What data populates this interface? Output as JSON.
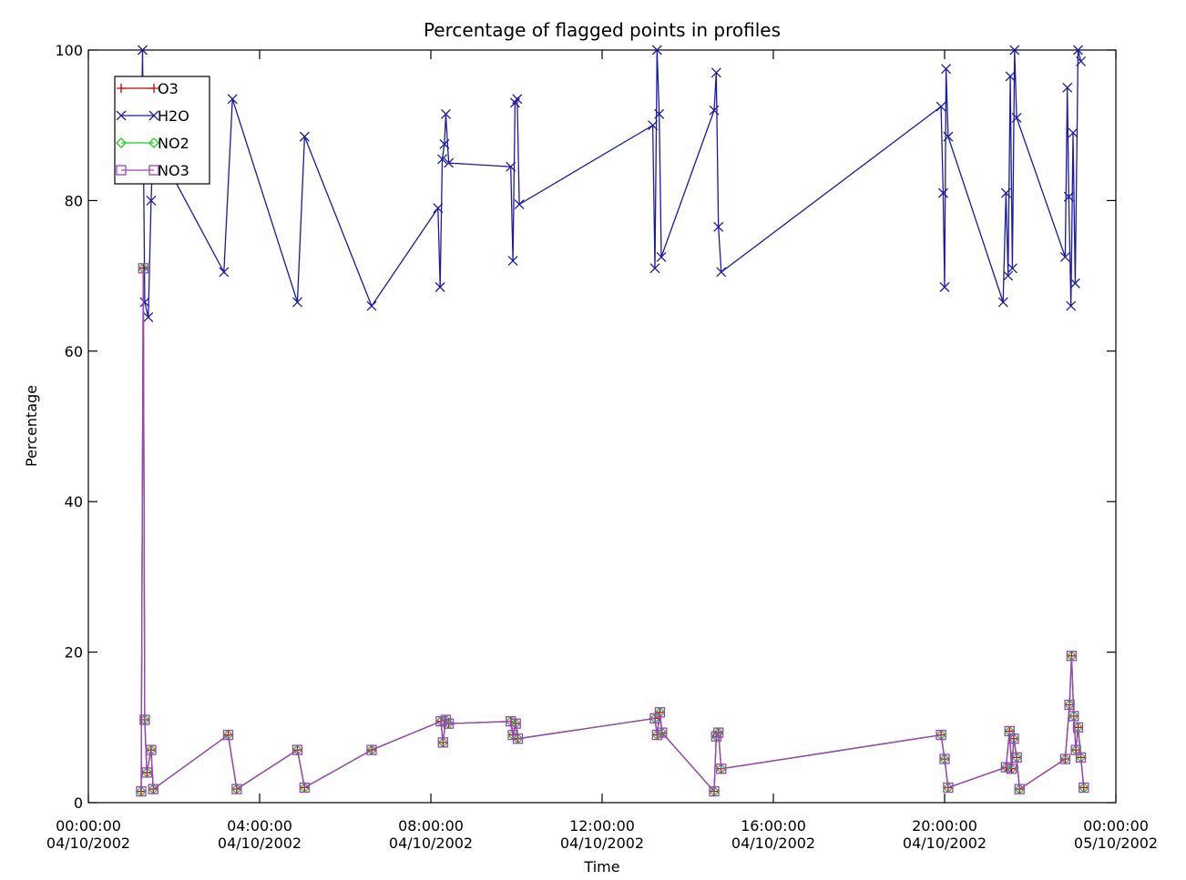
{
  "chart_data": {
    "type": "line",
    "title": "Percentage of flagged points in profiles",
    "xlabel": "Time",
    "ylabel": "Percentage",
    "xlim": [
      "2002-10-04T00:00",
      "2002-10-05T00:00"
    ],
    "ylim": [
      0,
      100
    ],
    "x_ticks": [
      {
        "value": "2002-10-04T00:00",
        "line1": "00:00:00",
        "line2": "04/10/2002"
      },
      {
        "value": "2002-10-04T04:00",
        "line1": "04:00:00",
        "line2": "04/10/2002"
      },
      {
        "value": "2002-10-04T08:00",
        "line1": "08:00:00",
        "line2": "04/10/2002"
      },
      {
        "value": "2002-10-04T12:00",
        "line1": "12:00:00",
        "line2": "04/10/2002"
      },
      {
        "value": "2002-10-04T16:00",
        "line1": "16:00:00",
        "line2": "04/10/2002"
      },
      {
        "value": "2002-10-04T20:00",
        "line1": "20:00:00",
        "line2": "04/10/2002"
      },
      {
        "value": "2002-10-05T00:00",
        "line1": "00:00:00",
        "line2": "05/10/2002"
      }
    ],
    "y_ticks": [
      0,
      20,
      40,
      60,
      80,
      100
    ],
    "grid": false,
    "legend_position": "top-left",
    "series": [
      {
        "name": "O3",
        "color": "#cc0000",
        "marker": "plus",
        "points": [
          [
            "2002-10-04T01:14",
            1.5
          ],
          [
            "2002-10-04T01:17",
            71
          ],
          [
            "2002-10-04T01:19",
            11
          ],
          [
            "2002-10-04T01:22",
            4
          ],
          [
            "2002-10-04T01:28",
            7
          ],
          [
            "2002-10-04T01:31",
            1.8
          ],
          [
            "2002-10-04T03:16",
            9
          ],
          [
            "2002-10-04T03:28",
            1.8
          ],
          [
            "2002-10-04T04:53",
            7
          ],
          [
            "2002-10-04T05:03",
            2
          ],
          [
            "2002-10-04T06:37",
            7
          ],
          [
            "2002-10-04T08:14",
            10.8
          ],
          [
            "2002-10-04T08:17",
            8
          ],
          [
            "2002-10-04T08:21",
            11
          ],
          [
            "2002-10-04T08:25",
            10.5
          ],
          [
            "2002-10-04T09:52",
            10.8
          ],
          [
            "2002-10-04T09:55",
            9
          ],
          [
            "2002-10-04T09:59",
            10.5
          ],
          [
            "2002-10-04T10:02",
            8.5
          ],
          [
            "2002-10-04T13:14",
            11.2
          ],
          [
            "2002-10-04T13:17",
            9
          ],
          [
            "2002-10-04T13:21",
            12
          ],
          [
            "2002-10-04T13:24",
            9.3
          ],
          [
            "2002-10-04T14:37",
            1.5
          ],
          [
            "2002-10-04T14:40",
            8.8
          ],
          [
            "2002-10-04T14:43",
            9.3
          ],
          [
            "2002-10-04T14:47",
            4.5
          ],
          [
            "2002-10-04T19:55",
            9
          ],
          [
            "2002-10-04T20:00",
            5.8
          ],
          [
            "2002-10-04T20:05",
            2
          ],
          [
            "2002-10-04T21:26",
            4.7
          ],
          [
            "2002-10-04T21:31",
            9.5
          ],
          [
            "2002-10-04T21:34",
            4.5
          ],
          [
            "2002-10-04T21:37",
            8.5
          ],
          [
            "2002-10-04T21:41",
            6
          ],
          [
            "2002-10-04T21:45",
            1.8
          ],
          [
            "2002-10-04T22:49",
            5.8
          ],
          [
            "2002-10-04T22:55",
            13
          ],
          [
            "2002-10-04T22:58",
            19.5
          ],
          [
            "2002-10-04T23:01",
            11.5
          ],
          [
            "2002-10-04T23:04",
            7
          ],
          [
            "2002-10-04T23:07",
            10
          ],
          [
            "2002-10-04T23:11",
            6
          ],
          [
            "2002-10-04T23:15",
            2
          ]
        ]
      },
      {
        "name": "H2O",
        "color": "#1a1aa6",
        "marker": "x",
        "points": [
          [
            "2002-10-04T01:14",
            87
          ],
          [
            "2002-10-04T01:16",
            100
          ],
          [
            "2002-10-04T01:19",
            66.5
          ],
          [
            "2002-10-04T01:24",
            64.5
          ],
          [
            "2002-10-04T01:28",
            80
          ],
          [
            "2002-10-04T01:31",
            88
          ],
          [
            "2002-10-04T03:10",
            70.5
          ],
          [
            "2002-10-04T03:22",
            93.5
          ],
          [
            "2002-10-04T04:53",
            66.5
          ],
          [
            "2002-10-04T05:03",
            88.5
          ],
          [
            "2002-10-04T06:37",
            66
          ],
          [
            "2002-10-04T08:10",
            79
          ],
          [
            "2002-10-04T08:13",
            68.5
          ],
          [
            "2002-10-04T08:16",
            85.5
          ],
          [
            "2002-10-04T08:19",
            87.5
          ],
          [
            "2002-10-04T08:21",
            91.5
          ],
          [
            "2002-10-04T08:25",
            85
          ],
          [
            "2002-10-04T09:52",
            84.5
          ],
          [
            "2002-10-04T09:55",
            72
          ],
          [
            "2002-10-04T09:58",
            93
          ],
          [
            "2002-10-04T10:01",
            93.5
          ],
          [
            "2002-10-04T10:04",
            79.5
          ],
          [
            "2002-10-04T13:11",
            90
          ],
          [
            "2002-10-04T13:14",
            71
          ],
          [
            "2002-10-04T13:17",
            100
          ],
          [
            "2002-10-04T13:20",
            91.5
          ],
          [
            "2002-10-04T13:23",
            72.5
          ],
          [
            "2002-10-04T14:37",
            92
          ],
          [
            "2002-10-04T14:40",
            97
          ],
          [
            "2002-10-04T14:43",
            76.5
          ],
          [
            "2002-10-04T14:47",
            70.5
          ],
          [
            "2002-10-04T19:55",
            92.5
          ],
          [
            "2002-10-04T19:58",
            81
          ],
          [
            "2002-10-04T20:00",
            68.5
          ],
          [
            "2002-10-04T20:02",
            97.5
          ],
          [
            "2002-10-04T20:05",
            88.5
          ],
          [
            "2002-10-04T21:22",
            66.5
          ],
          [
            "2002-10-04T21:26",
            81
          ],
          [
            "2002-10-04T21:29",
            70
          ],
          [
            "2002-10-04T21:32",
            96.5
          ],
          [
            "2002-10-04T21:35",
            71
          ],
          [
            "2002-10-04T21:38",
            100
          ],
          [
            "2002-10-04T21:41",
            91
          ],
          [
            "2002-10-04T22:49",
            72.5
          ],
          [
            "2002-10-04T22:52",
            95
          ],
          [
            "2002-10-04T22:54",
            80.5
          ],
          [
            "2002-10-04T22:57",
            66
          ],
          [
            "2002-10-04T23:00",
            89
          ],
          [
            "2002-10-04T23:03",
            69
          ],
          [
            "2002-10-04T23:07",
            100
          ],
          [
            "2002-10-04T23:11",
            98.5
          ]
        ]
      },
      {
        "name": "NO2",
        "color": "#22cc22",
        "marker": "diamond",
        "points": [
          [
            "2002-10-04T01:14",
            1.5
          ],
          [
            "2002-10-04T01:17",
            71
          ],
          [
            "2002-10-04T01:19",
            11
          ],
          [
            "2002-10-04T01:22",
            4
          ],
          [
            "2002-10-04T01:28",
            7
          ],
          [
            "2002-10-04T01:31",
            1.8
          ],
          [
            "2002-10-04T03:16",
            9
          ],
          [
            "2002-10-04T03:28",
            1.8
          ],
          [
            "2002-10-04T04:53",
            7
          ],
          [
            "2002-10-04T05:03",
            2
          ],
          [
            "2002-10-04T06:37",
            7
          ],
          [
            "2002-10-04T08:14",
            10.8
          ],
          [
            "2002-10-04T08:17",
            8
          ],
          [
            "2002-10-04T08:21",
            11
          ],
          [
            "2002-10-04T08:25",
            10.5
          ],
          [
            "2002-10-04T09:52",
            10.8
          ],
          [
            "2002-10-04T09:55",
            9
          ],
          [
            "2002-10-04T09:59",
            10.5
          ],
          [
            "2002-10-04T10:02",
            8.5
          ],
          [
            "2002-10-04T13:14",
            11.2
          ],
          [
            "2002-10-04T13:17",
            9
          ],
          [
            "2002-10-04T13:21",
            12
          ],
          [
            "2002-10-04T13:24",
            9.3
          ],
          [
            "2002-10-04T14:37",
            1.5
          ],
          [
            "2002-10-04T14:40",
            8.8
          ],
          [
            "2002-10-04T14:43",
            9.3
          ],
          [
            "2002-10-04T14:47",
            4.5
          ],
          [
            "2002-10-04T19:55",
            9
          ],
          [
            "2002-10-04T20:00",
            5.8
          ],
          [
            "2002-10-04T20:05",
            2
          ],
          [
            "2002-10-04T21:26",
            4.7
          ],
          [
            "2002-10-04T21:31",
            9.5
          ],
          [
            "2002-10-04T21:34",
            4.5
          ],
          [
            "2002-10-04T21:37",
            8.5
          ],
          [
            "2002-10-04T21:41",
            6
          ],
          [
            "2002-10-04T21:45",
            1.8
          ],
          [
            "2002-10-04T22:49",
            5.8
          ],
          [
            "2002-10-04T22:55",
            13
          ],
          [
            "2002-10-04T22:58",
            19.5
          ],
          [
            "2002-10-04T23:01",
            11.5
          ],
          [
            "2002-10-04T23:04",
            7
          ],
          [
            "2002-10-04T23:07",
            10
          ],
          [
            "2002-10-04T23:11",
            6
          ],
          [
            "2002-10-04T23:15",
            2
          ]
        ]
      },
      {
        "name": "NO3",
        "color": "#a040c0",
        "marker": "square",
        "points": [
          [
            "2002-10-04T01:14",
            1.5
          ],
          [
            "2002-10-04T01:17",
            71
          ],
          [
            "2002-10-04T01:19",
            11
          ],
          [
            "2002-10-04T01:22",
            4
          ],
          [
            "2002-10-04T01:28",
            7
          ],
          [
            "2002-10-04T01:31",
            1.8
          ],
          [
            "2002-10-04T03:16",
            9
          ],
          [
            "2002-10-04T03:28",
            1.8
          ],
          [
            "2002-10-04T04:53",
            7
          ],
          [
            "2002-10-04T05:03",
            2
          ],
          [
            "2002-10-04T06:37",
            7
          ],
          [
            "2002-10-04T08:14",
            10.8
          ],
          [
            "2002-10-04T08:17",
            8
          ],
          [
            "2002-10-04T08:21",
            11
          ],
          [
            "2002-10-04T08:25",
            10.5
          ],
          [
            "2002-10-04T09:52",
            10.8
          ],
          [
            "2002-10-04T09:55",
            9
          ],
          [
            "2002-10-04T09:59",
            10.5
          ],
          [
            "2002-10-04T10:02",
            8.5
          ],
          [
            "2002-10-04T13:14",
            11.2
          ],
          [
            "2002-10-04T13:17",
            9
          ],
          [
            "2002-10-04T13:21",
            12
          ],
          [
            "2002-10-04T13:24",
            9.3
          ],
          [
            "2002-10-04T14:37",
            1.5
          ],
          [
            "2002-10-04T14:40",
            8.8
          ],
          [
            "2002-10-04T14:43",
            9.3
          ],
          [
            "2002-10-04T14:47",
            4.5
          ],
          [
            "2002-10-04T19:55",
            9
          ],
          [
            "2002-10-04T20:00",
            5.8
          ],
          [
            "2002-10-04T20:05",
            2
          ],
          [
            "2002-10-04T21:26",
            4.7
          ],
          [
            "2002-10-04T21:31",
            9.5
          ],
          [
            "2002-10-04T21:34",
            4.5
          ],
          [
            "2002-10-04T21:37",
            8.5
          ],
          [
            "2002-10-04T21:41",
            6
          ],
          [
            "2002-10-04T21:45",
            1.8
          ],
          [
            "2002-10-04T22:49",
            5.8
          ],
          [
            "2002-10-04T22:55",
            13
          ],
          [
            "2002-10-04T22:58",
            19.5
          ],
          [
            "2002-10-04T23:01",
            11.5
          ],
          [
            "2002-10-04T23:04",
            7
          ],
          [
            "2002-10-04T23:07",
            10
          ],
          [
            "2002-10-04T23:11",
            6
          ],
          [
            "2002-10-04T23:15",
            2
          ]
        ]
      }
    ]
  }
}
